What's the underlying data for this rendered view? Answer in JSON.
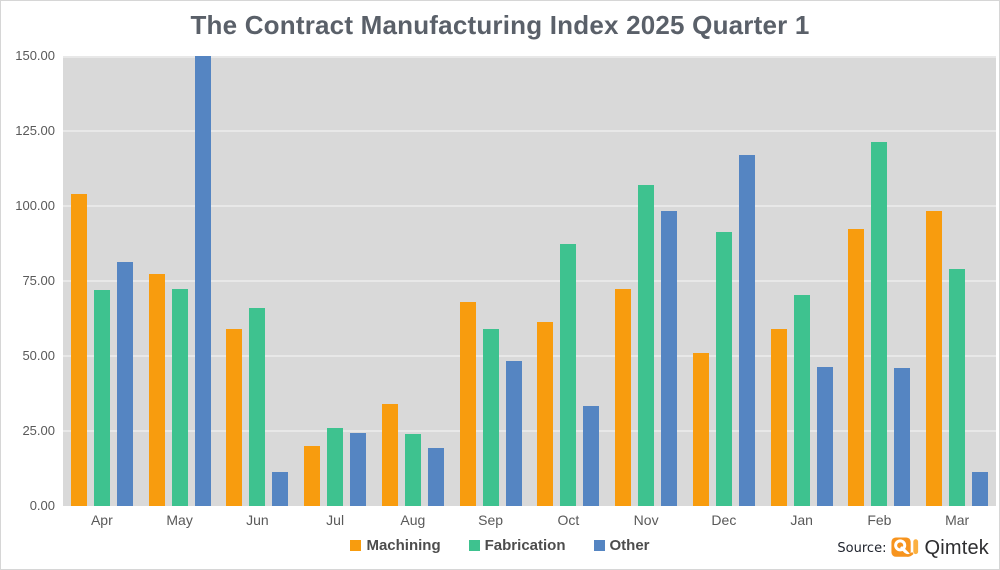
{
  "title": "The Contract Manufacturing Index 2025 Quarter 1",
  "source": {
    "label": "Source:",
    "brand": "Qimtek",
    "logo_icon": "qimtek-q-logo"
  },
  "colors": {
    "machining": "#f89c0e",
    "fabrication": "#3ec28f",
    "other": "#5585c2",
    "plot_background": "#d9d9d9",
    "gridline": "#e8e8e8",
    "title_text": "#5a6069",
    "axis_text": "#595959",
    "logo_orange": "#f7941e",
    "logo_light_orange": "#fbb040"
  },
  "chart_data": {
    "type": "bar",
    "title": "The Contract Manufacturing Index 2025 Quarter 1",
    "categories": [
      "Apr",
      "May",
      "Jun",
      "Jul",
      "Aug",
      "Sep",
      "Oct",
      "Nov",
      "Dec",
      "Jan",
      "Feb",
      "Mar"
    ],
    "series": [
      {
        "name": "Machining",
        "color": "#f89c0e",
        "values": [
          104,
          77.5,
          59,
          20,
          34,
          68,
          61.5,
          72.5,
          51,
          59,
          92.5,
          98.5
        ]
      },
      {
        "name": "Fabrication",
        "color": "#3ec28f",
        "values": [
          72,
          72.5,
          66,
          26,
          24,
          59,
          87.5,
          107,
          91.5,
          70.5,
          121.5,
          79
        ]
      },
      {
        "name": "Other",
        "color": "#5585c2",
        "values": [
          81.5,
          150,
          11.5,
          24.5,
          19.5,
          48.5,
          33.5,
          98.5,
          117,
          46.5,
          46,
          11.5
        ]
      }
    ],
    "xlabel": "",
    "ylabel": "",
    "ylim": [
      0,
      150
    ],
    "ytick_step": 25,
    "ytick_labels": [
      "0.00",
      "25.00",
      "50.00",
      "75.00",
      "100.00",
      "125.00",
      "150.00"
    ],
    "grid": "horizontal",
    "legend_position": "bottom-center",
    "note": "May Other bar reaches the 150.00 axis maximum (clipped at top of plot)"
  }
}
